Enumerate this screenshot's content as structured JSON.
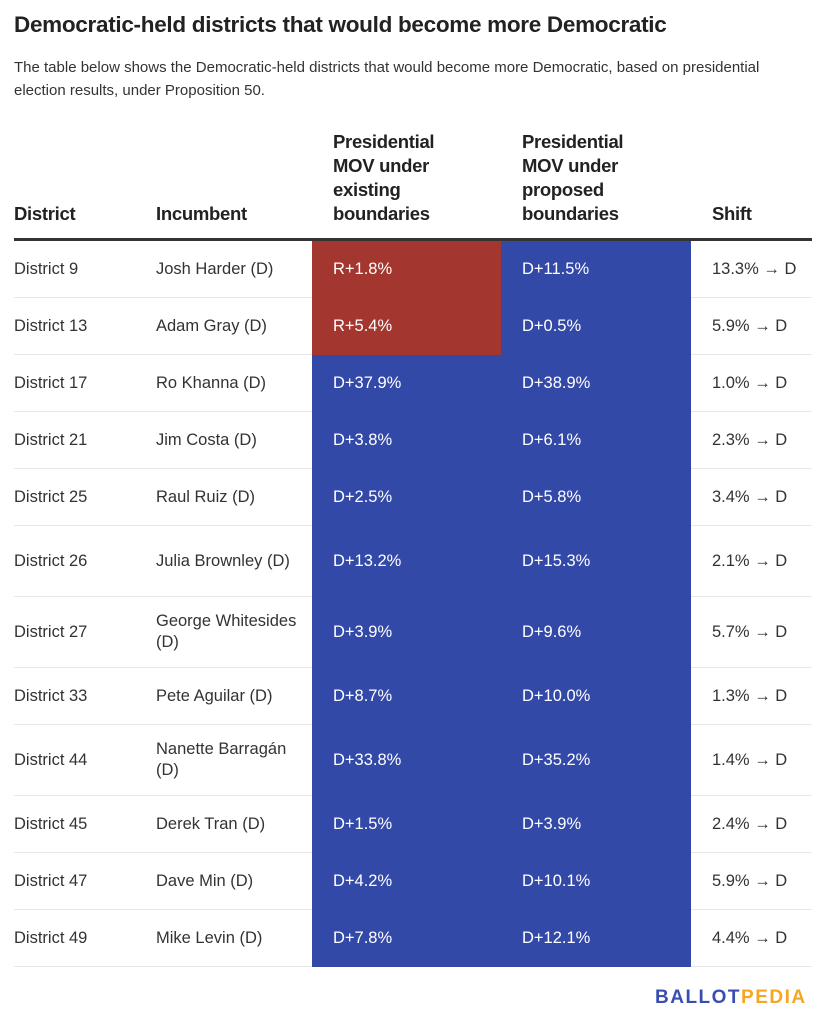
{
  "title": "Democratic-held districts that would become more Democratic",
  "subtitle": "The table below shows the Democratic-held districts that would become more Democratic, based on presidential election results, under Proposition 50.",
  "colors": {
    "republican": "#a3372f",
    "democratic": "#3349a8",
    "logo_blue": "#3a4db0",
    "logo_orange": "#f5a623"
  },
  "table": {
    "headers": [
      "District",
      "Incumbent",
      "Presidential MOV under existing boundaries",
      "Presidential MOV under proposed boundaries",
      "Shift"
    ],
    "rows": [
      {
        "district": "District 9",
        "incumbent": "Josh Harder (D)",
        "existing": "R+1.8%",
        "proposed": "D+11.5%",
        "shift": "13.3% → D"
      },
      {
        "district": "District 13",
        "incumbent": "Adam Gray (D)",
        "existing": "R+5.4%",
        "proposed": "D+0.5%",
        "shift": "5.9% → D"
      },
      {
        "district": "District 17",
        "incumbent": "Ro Khanna (D)",
        "existing": "D+37.9%",
        "proposed": "D+38.9%",
        "shift": "1.0% → D"
      },
      {
        "district": "District 21",
        "incumbent": "Jim Costa (D)",
        "existing": "D+3.8%",
        "proposed": "D+6.1%",
        "shift": "2.3% → D"
      },
      {
        "district": "District 25",
        "incumbent": "Raul Ruiz (D)",
        "existing": "D+2.5%",
        "proposed": "D+5.8%",
        "shift": "3.4% → D"
      },
      {
        "district": "District 26",
        "incumbent": "Julia Brownley (D)",
        "existing": "D+13.2%",
        "proposed": "D+15.3%",
        "shift": "2.1% → D"
      },
      {
        "district": "District 27",
        "incumbent": "George Whitesides (D)",
        "existing": "D+3.9%",
        "proposed": "D+9.6%",
        "shift": "5.7% → D"
      },
      {
        "district": "District 33",
        "incumbent": "Pete Aguilar (D)",
        "existing": "D+8.7%",
        "proposed": "D+10.0%",
        "shift": "1.3% → D"
      },
      {
        "district": "District 44",
        "incumbent": "Nanette Barragán (D)",
        "existing": "D+33.8%",
        "proposed": "D+35.2%",
        "shift": "1.4% → D"
      },
      {
        "district": "District 45",
        "incumbent": "Derek Tran (D)",
        "existing": "D+1.5%",
        "proposed": "D+3.9%",
        "shift": "2.4% → D"
      },
      {
        "district": "District 47",
        "incumbent": "Dave Min (D)",
        "existing": "D+4.2%",
        "proposed": "D+10.1%",
        "shift": "5.9% → D"
      },
      {
        "district": "District 49",
        "incumbent": "Mike Levin (D)",
        "existing": "D+7.8%",
        "proposed": "D+12.1%",
        "shift": "4.4% → D"
      }
    ]
  },
  "logo": {
    "part1": "BALLOT",
    "part2": "PEDIA"
  }
}
